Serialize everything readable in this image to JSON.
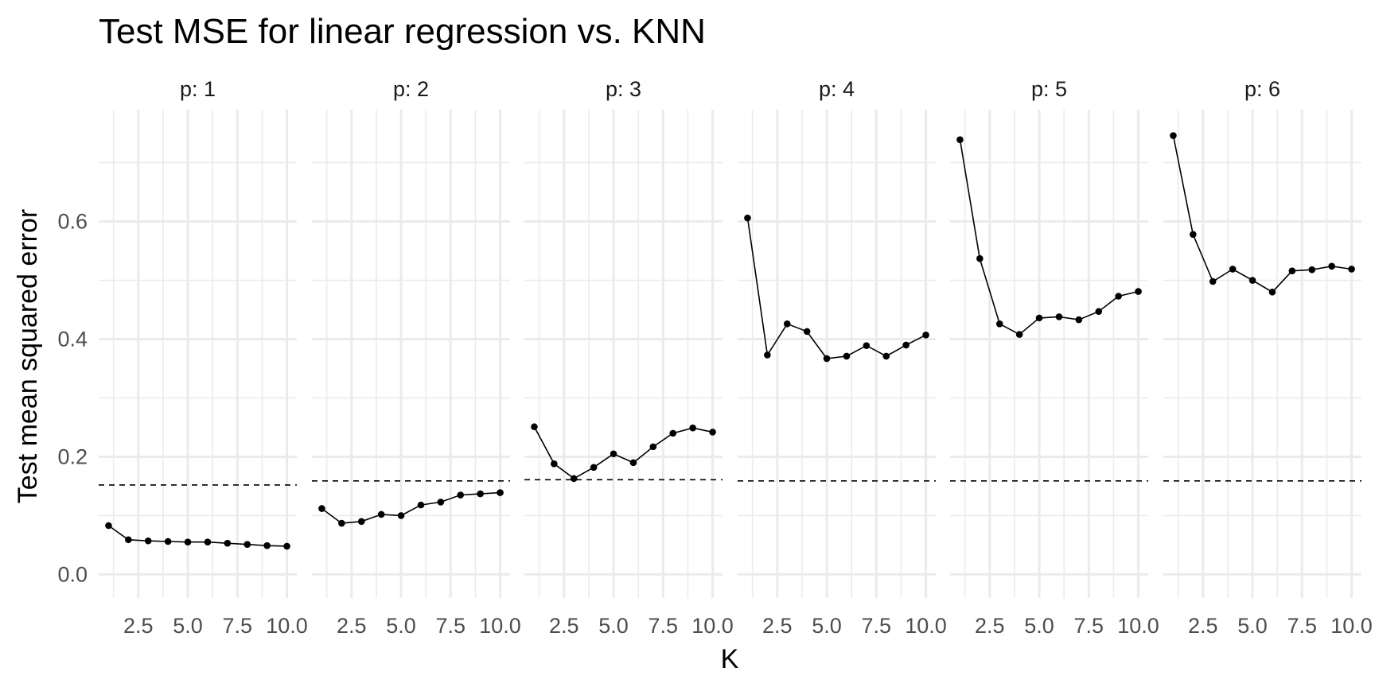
{
  "chart_data": {
    "type": "line",
    "title": "Test MSE for linear regression vs. KNN",
    "xlabel": "K",
    "ylabel": "Test mean squared error",
    "facet_label_prefix": "p: ",
    "xlim": [
      0.5,
      10.5
    ],
    "ylim": [
      -0.04,
      0.79
    ],
    "x_ticks": [
      "2.5",
      "5.0",
      "7.5",
      "10.0"
    ],
    "x_tick_values": [
      2.5,
      5.0,
      7.5,
      10.0
    ],
    "y_ticks": [
      "0.0",
      "0.2",
      "0.4",
      "0.6"
    ],
    "y_tick_values": [
      0.0,
      0.2,
      0.4,
      0.6
    ],
    "grid": true,
    "line_color": "#000000",
    "grid_color": "#ebebeb",
    "x": [
      1,
      2,
      3,
      4,
      5,
      6,
      7,
      8,
      9,
      10
    ],
    "panels": [
      {
        "p": "1",
        "knn_mse": [
          0.083,
          0.059,
          0.057,
          0.056,
          0.055,
          0.055,
          0.053,
          0.051,
          0.049,
          0.048
        ],
        "linear_mse": 0.152
      },
      {
        "p": "2",
        "knn_mse": [
          0.112,
          0.087,
          0.09,
          0.102,
          0.1,
          0.118,
          0.123,
          0.135,
          0.137,
          0.139
        ],
        "linear_mse": 0.159
      },
      {
        "p": "3",
        "knn_mse": [
          0.251,
          0.188,
          0.163,
          0.182,
          0.205,
          0.19,
          0.217,
          0.24,
          0.249,
          0.242
        ],
        "linear_mse": 0.161
      },
      {
        "p": "4",
        "knn_mse": [
          0.606,
          0.373,
          0.426,
          0.413,
          0.367,
          0.371,
          0.389,
          0.371,
          0.39,
          0.407
        ],
        "linear_mse": 0.159
      },
      {
        "p": "5",
        "knn_mse": [
          0.739,
          0.537,
          0.426,
          0.408,
          0.436,
          0.438,
          0.433,
          0.447,
          0.473,
          0.481
        ],
        "linear_mse": 0.159
      },
      {
        "p": "6",
        "knn_mse": [
          0.746,
          0.578,
          0.498,
          0.519,
          0.5,
          0.48,
          0.516,
          0.518,
          0.524,
          0.519
        ],
        "linear_mse": 0.159
      }
    ]
  }
}
